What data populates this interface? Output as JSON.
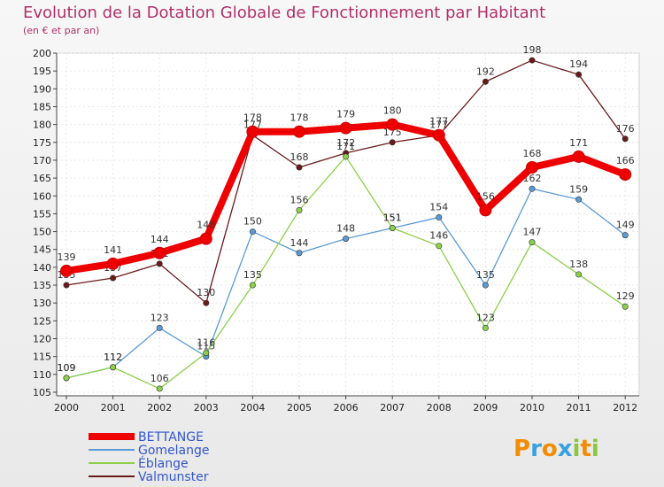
{
  "chart_data": {
    "type": "line",
    "title": "Evolution de la Dotation Globale de Fonctionnement par Habitant",
    "subtitle": "(en € et par an)",
    "x": [
      "2000",
      "2001",
      "2002",
      "2003",
      "2004",
      "2005",
      "2006",
      "2007",
      "2008",
      "2009",
      "2010",
      "2011",
      "2012"
    ],
    "y_ticks": [
      "105",
      "110",
      "115",
      "120",
      "125",
      "130",
      "135",
      "140",
      "145",
      "150",
      "155",
      "160",
      "165",
      "170",
      "175",
      "180",
      "185",
      "190",
      "195",
      "200"
    ],
    "ylim": [
      104,
      200
    ],
    "series": [
      {
        "name": "Valmunster",
        "color": "#6b1a1a",
        "values": [
          135,
          137,
          141,
          130,
          177,
          168,
          172,
          175,
          177,
          192,
          198,
          194,
          176
        ],
        "labels": [
          "135",
          "137",
          "141",
          "130",
          "177",
          "168",
          "172",
          "175",
          "177",
          "192",
          "198",
          "194",
          "176"
        ]
      },
      {
        "name": "Gomelange",
        "color": "#5b9bd5",
        "values": [
          109,
          112,
          123,
          115,
          150,
          144,
          148,
          151,
          154,
          135,
          162,
          159,
          149
        ],
        "labels": [
          "109",
          "112",
          "123",
          "115",
          "150",
          "144",
          "148",
          "151",
          "154",
          "135",
          "162",
          "159",
          "149"
        ]
      },
      {
        "name": "Éblange",
        "color": "#8ccf4b",
        "values": [
          109,
          112,
          106,
          116,
          135,
          156,
          171,
          151,
          146,
          123,
          147,
          138,
          129
        ],
        "labels": [
          "109",
          "112",
          "106",
          "116",
          "135",
          "156",
          "171",
          "151",
          "146",
          "123",
          "147",
          "138",
          "129"
        ]
      },
      {
        "name": "BETTANGE",
        "color": "#ee0000",
        "values": [
          139,
          141,
          144,
          148,
          178,
          178,
          179,
          180,
          177,
          156,
          168,
          171,
          166
        ],
        "labels": [
          "139",
          "141",
          "144",
          "148",
          "178",
          "178",
          "179",
          "180",
          "177",
          "156",
          "168",
          "171",
          "166"
        ]
      }
    ],
    "legend": [
      "BETTANGE",
      "Gomelange",
      "Éblange",
      "Valmunster"
    ],
    "legend_position": "bottom-left"
  },
  "logo": {
    "text": "Proxiti"
  }
}
